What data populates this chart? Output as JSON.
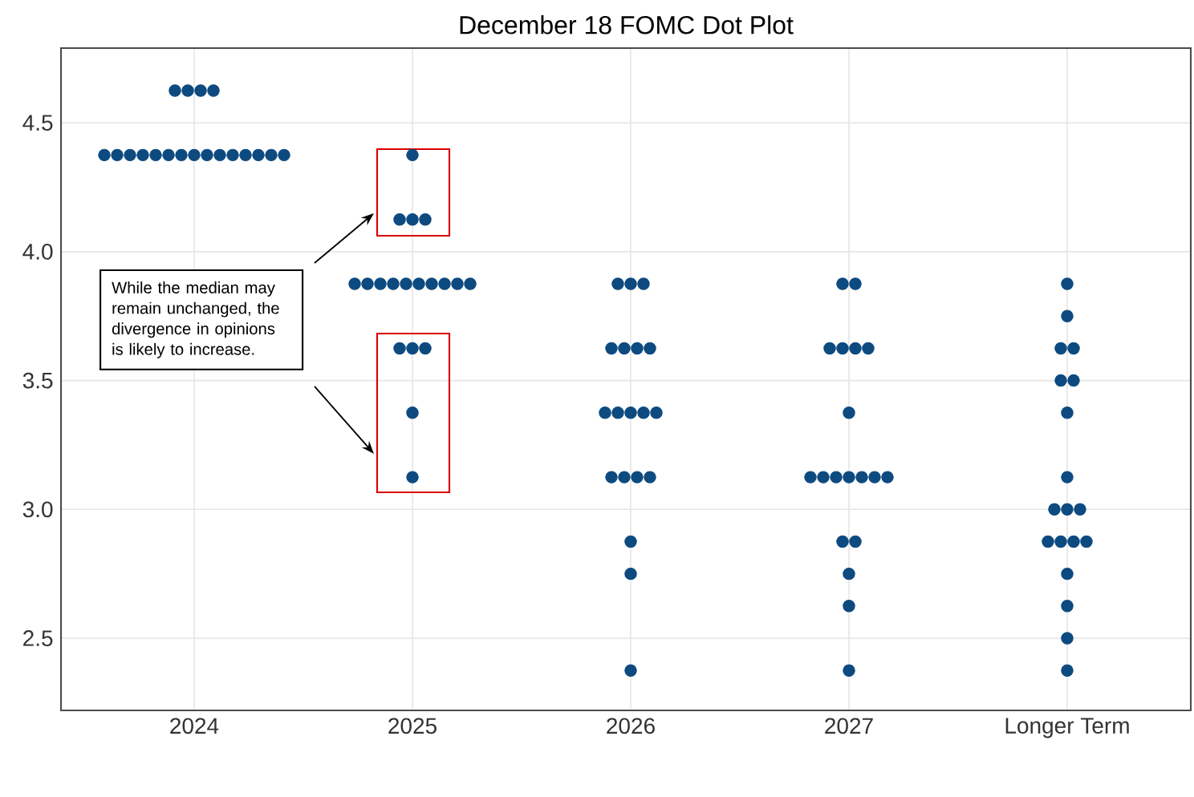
{
  "chart_data": {
    "type": "scatter",
    "title": "December 18 FOMC Dot Plot",
    "categories": [
      "2024",
      "2025",
      "2026",
      "2027",
      "Longer Term"
    ],
    "series": [
      {
        "color": "#0d4a80",
        "values": [
          4.625,
          4.375,
          3.875,
          3.875,
          3.875
        ]
      },
      {
        "color": "#0d4a80",
        "values": [
          4.625,
          4.125,
          3.875,
          3.875,
          3.75
        ]
      },
      {
        "color": "#0d4a80",
        "values": [
          4.625,
          4.125,
          3.875,
          3.625,
          3.625
        ]
      },
      {
        "color": "#0d4a80",
        "values": [
          4.625,
          4.125,
          3.625,
          3.625,
          3.625
        ]
      },
      {
        "color": "#0d4a80",
        "values": [
          4.375,
          3.875,
          3.625,
          3.625,
          3.5
        ]
      },
      {
        "color": "#0d4a80",
        "values": [
          4.375,
          3.875,
          3.625,
          3.625,
          3.5
        ]
      },
      {
        "color": "#0d4a80",
        "values": [
          4.375,
          3.875,
          3.625,
          3.375,
          3.375
        ]
      },
      {
        "color": "#0d4a80",
        "values": [
          4.375,
          3.875,
          3.375,
          3.125,
          3.125
        ]
      },
      {
        "color": "#0d4a80",
        "values": [
          4.375,
          3.875,
          3.375,
          3.125,
          3.0
        ]
      },
      {
        "color": "#0d4a80",
        "values": [
          4.375,
          3.875,
          3.375,
          3.125,
          3.0
        ]
      },
      {
        "color": "#0d4a80",
        "values": [
          4.375,
          3.875,
          3.375,
          3.125,
          3.0
        ]
      },
      {
        "color": "#0d4a80",
        "values": [
          4.375,
          3.875,
          3.375,
          3.125,
          2.875
        ]
      },
      {
        "color": "#0d4a80",
        "values": [
          4.375,
          3.875,
          3.125,
          3.125,
          2.875
        ]
      },
      {
        "color": "#0d4a80",
        "values": [
          4.375,
          3.875,
          3.125,
          3.125,
          2.875
        ]
      },
      {
        "color": "#0d4a80",
        "values": [
          4.375,
          3.625,
          3.125,
          2.875,
          2.875
        ]
      },
      {
        "color": "#0d4a80",
        "values": [
          4.375,
          3.625,
          3.125,
          2.875,
          2.75
        ]
      },
      {
        "color": "#0d4a80",
        "values": [
          4.375,
          3.625,
          2.875,
          2.75,
          2.625
        ]
      },
      {
        "color": "#0d4a80",
        "values": [
          4.375,
          3.375,
          2.75,
          2.625,
          2.5
        ]
      },
      {
        "color": "#0d4a80",
        "values": [
          4.375,
          3.125,
          2.375,
          2.375,
          2.375
        ]
      }
    ],
    "ylim": [
      2.22,
      4.79
    ],
    "yticks": [
      2.5,
      {
        "value": 3,
        "label": "3.0"
      },
      3.5,
      {
        "value": 4,
        "label": "4.0"
      },
      4.5
    ],
    "grid": true,
    "marker": "circle",
    "annotations": [
      "While the median may remain unchanged, the divergence in opinions is likely to increase."
    ]
  }
}
